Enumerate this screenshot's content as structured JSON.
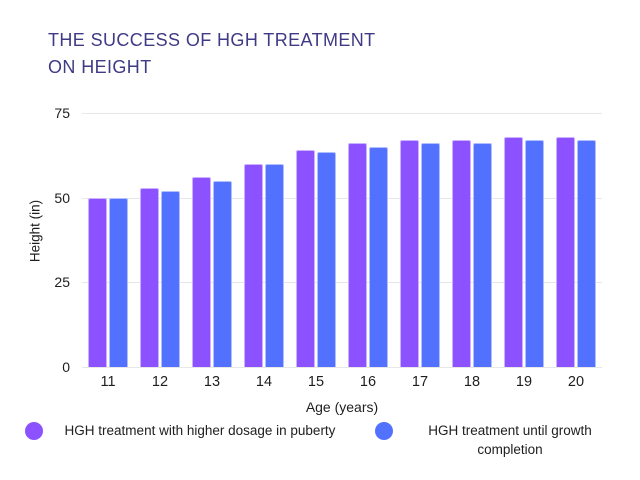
{
  "title": {
    "line1": "THE SUCCESS OF HGH TREATMENT",
    "line2": "ON HEIGHT"
  },
  "colors": {
    "purple": "#8C52FF",
    "blue": "#5271FF",
    "title_text": "#3F3A85",
    "gridline": "#E7E7E7",
    "axis_text": "#1E1E1E"
  },
  "axes": {
    "xlabel": "Age (years)",
    "ylabel": "Height (in)"
  },
  "legend": {
    "items": [
      {
        "label": "HGH treatment with higher dosage in puberty",
        "color": "#8C52FF"
      },
      {
        "label": "HGH treatment until growth completion",
        "color": "#5271FF"
      }
    ]
  },
  "chart_data": {
    "type": "bar",
    "title": "THE SUCCESS OF HGH TREATMENT ON HEIGHT",
    "categories": [
      11,
      12,
      13,
      14,
      15,
      16,
      17,
      18,
      19,
      20
    ],
    "series": [
      {
        "name": "HGH treatment with higher dosage in puberty",
        "color": "#8C52FF",
        "values": [
          50,
          53,
          56,
          60,
          64,
          66,
          67,
          67,
          68,
          68
        ]
      },
      {
        "name": "HGH treatment until growth completion",
        "color": "#5271FF",
        "values": [
          50,
          52,
          55,
          60,
          63.5,
          65,
          66,
          66,
          67,
          67
        ]
      }
    ],
    "xlabel": "Age (years)",
    "ylabel": "Height (in)",
    "ylim": [
      0,
      75
    ],
    "y_ticks": [
      75,
      50,
      25,
      0
    ],
    "grid": true,
    "legend_position": "bottom"
  }
}
